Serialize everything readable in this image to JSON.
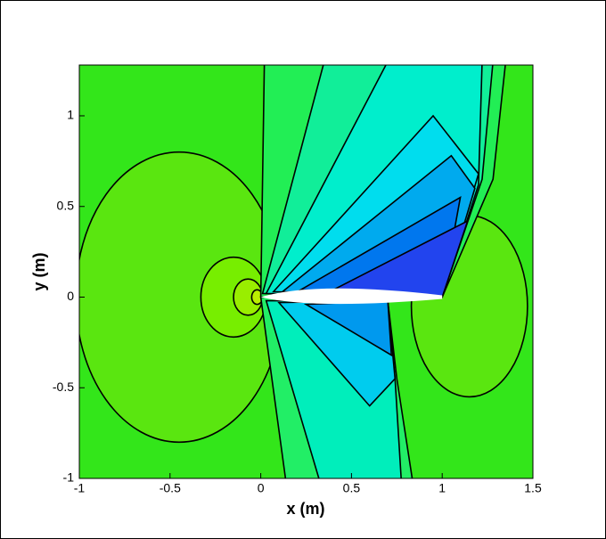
{
  "chart_data": {
    "type": "contour",
    "xlabel": "x (m)",
    "ylabel": "y (m)",
    "xlim": [
      -1,
      1.5
    ],
    "ylim": [
      -1,
      1.28
    ],
    "xticks": [
      -1,
      -0.5,
      0,
      0.5,
      1,
      1.5
    ],
    "yticks": [
      -1,
      -0.5,
      0,
      0.5,
      1
    ]
  }
}
